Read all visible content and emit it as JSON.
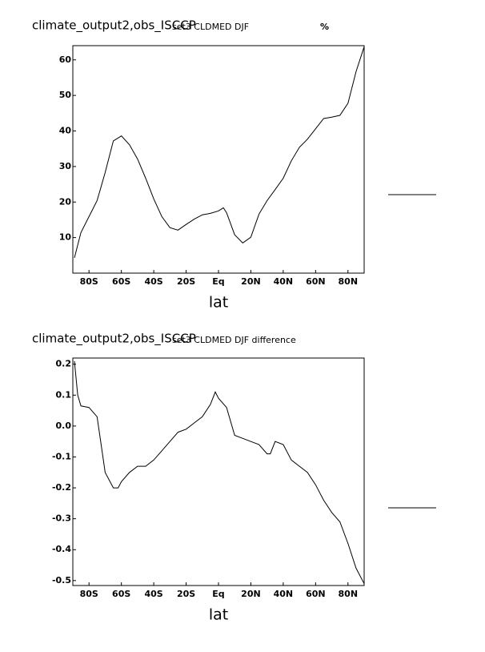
{
  "chart_data": [
    {
      "type": "line",
      "title": "climate_output2,obs_ISCCP",
      "subtitle": "set3 CLDMED DJF",
      "units": "%",
      "xlabel": "lat",
      "x": [
        -89,
        -85,
        -80,
        -75,
        -70,
        -65,
        -60,
        -55,
        -50,
        -45,
        -40,
        -35,
        -30,
        -25,
        -20,
        -15,
        -10,
        -5,
        0,
        3,
        5,
        10,
        15,
        20,
        25,
        30,
        35,
        40,
        45,
        50,
        55,
        60,
        65,
        70,
        75,
        80,
        85,
        90
      ],
      "series": [
        {
          "color": "#000000",
          "values": [
            4.3,
            11.4,
            15.9,
            20.4,
            28.3,
            37.2,
            38.6,
            36.1,
            32.1,
            26.7,
            20.9,
            15.9,
            12.8,
            12.1,
            13.7,
            15.2,
            16.4,
            16.8,
            17.5,
            18.4,
            17.0,
            10.8,
            8.5,
            10.1,
            16.6,
            20.4,
            23.5,
            26.7,
            31.6,
            35.4,
            37.7,
            40.6,
            43.5,
            43.9,
            44.4,
            47.8,
            56.7,
            63.7
          ]
        }
      ],
      "xlim": [
        -90,
        90
      ],
      "xticks": [
        {
          "value": -80,
          "label": "80S"
        },
        {
          "value": -60,
          "label": "60S"
        },
        {
          "value": -40,
          "label": "40S"
        },
        {
          "value": -20,
          "label": "20S"
        },
        {
          "value": 0,
          "label": "Eq"
        },
        {
          "value": 20,
          "label": "20N"
        },
        {
          "value": 40,
          "label": "40N"
        },
        {
          "value": 60,
          "label": "60N"
        },
        {
          "value": 80,
          "label": "80N"
        }
      ],
      "ylim": [
        0,
        64
      ],
      "yticks": [
        10,
        20,
        30,
        40,
        50,
        60
      ]
    },
    {
      "type": "line",
      "title": "climate_output2,obs_ISCCP",
      "subtitle": "set3 CLDMED DJF difference",
      "xlabel": "lat",
      "x": [
        -89,
        -87,
        -85,
        -80,
        -75,
        -70,
        -65,
        -62,
        -60,
        -55,
        -50,
        -45,
        -40,
        -35,
        -30,
        -25,
        -20,
        -15,
        -10,
        -5,
        -2,
        0,
        5,
        10,
        15,
        20,
        25,
        30,
        32,
        35,
        40,
        45,
        50,
        55,
        60,
        65,
        70,
        75,
        80,
        85,
        90
      ],
      "series": [
        {
          "color": "#000000",
          "values": [
            0.21,
            0.1,
            0.065,
            0.06,
            0.03,
            -0.15,
            -0.2,
            -0.2,
            -0.18,
            -0.15,
            -0.13,
            -0.13,
            -0.11,
            -0.08,
            -0.05,
            -0.02,
            -0.01,
            0.01,
            0.03,
            0.07,
            0.11,
            0.09,
            0.06,
            -0.03,
            -0.04,
            -0.05,
            -0.06,
            -0.09,
            -0.09,
            -0.05,
            -0.06,
            -0.11,
            -0.13,
            -0.15,
            -0.19,
            -0.24,
            -0.28,
            -0.31,
            -0.38,
            -0.46,
            -0.51
          ]
        }
      ],
      "xlim": [
        -90,
        90
      ],
      "xticks": [
        {
          "value": -80,
          "label": "80S"
        },
        {
          "value": -60,
          "label": "60S"
        },
        {
          "value": -40,
          "label": "40S"
        },
        {
          "value": -20,
          "label": "20S"
        },
        {
          "value": 0,
          "label": "Eq"
        },
        {
          "value": 20,
          "label": "20N"
        },
        {
          "value": 40,
          "label": "40N"
        },
        {
          "value": 60,
          "label": "60N"
        },
        {
          "value": 80,
          "label": "80N"
        }
      ],
      "ylim": [
        -0.516,
        0.22
      ],
      "yticks": [
        -0.5,
        -0.4,
        -0.3,
        -0.2,
        -0.1,
        {
          "value": 0,
          "label": "0.0"
        },
        0.1,
        0.2
      ]
    }
  ]
}
